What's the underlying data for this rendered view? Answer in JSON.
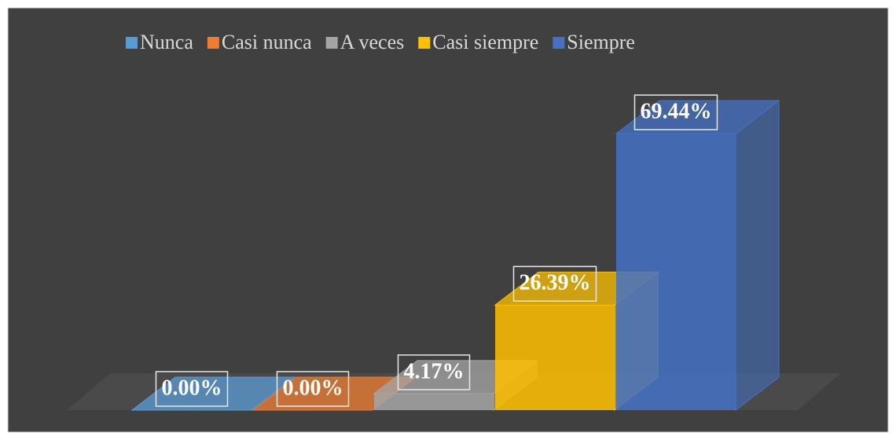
{
  "chart_data": {
    "type": "bar3d",
    "categories": [
      null
    ],
    "series": [
      {
        "name": "Nunca",
        "color": "#5b9bd5",
        "values": [
          0
        ],
        "value_labels": [
          "0.00%"
        ]
      },
      {
        "name": "Casi nunca",
        "color": "#ed7d31",
        "values": [
          0
        ],
        "value_labels": [
          "0.00%"
        ]
      },
      {
        "name": "A veces",
        "color": "#a5a5a5",
        "values": [
          4.17
        ],
        "value_labels": [
          "4.17%"
        ]
      },
      {
        "name": "Casi siempre",
        "color": "#ffc000",
        "values": [
          26.39
        ],
        "value_labels": [
          "26.39%"
        ]
      },
      {
        "name": "Siempre",
        "color": "#4472c4",
        "values": [
          69.44
        ],
        "value_labels": [
          "69.44%"
        ]
      }
    ],
    "legend": "top"
  }
}
